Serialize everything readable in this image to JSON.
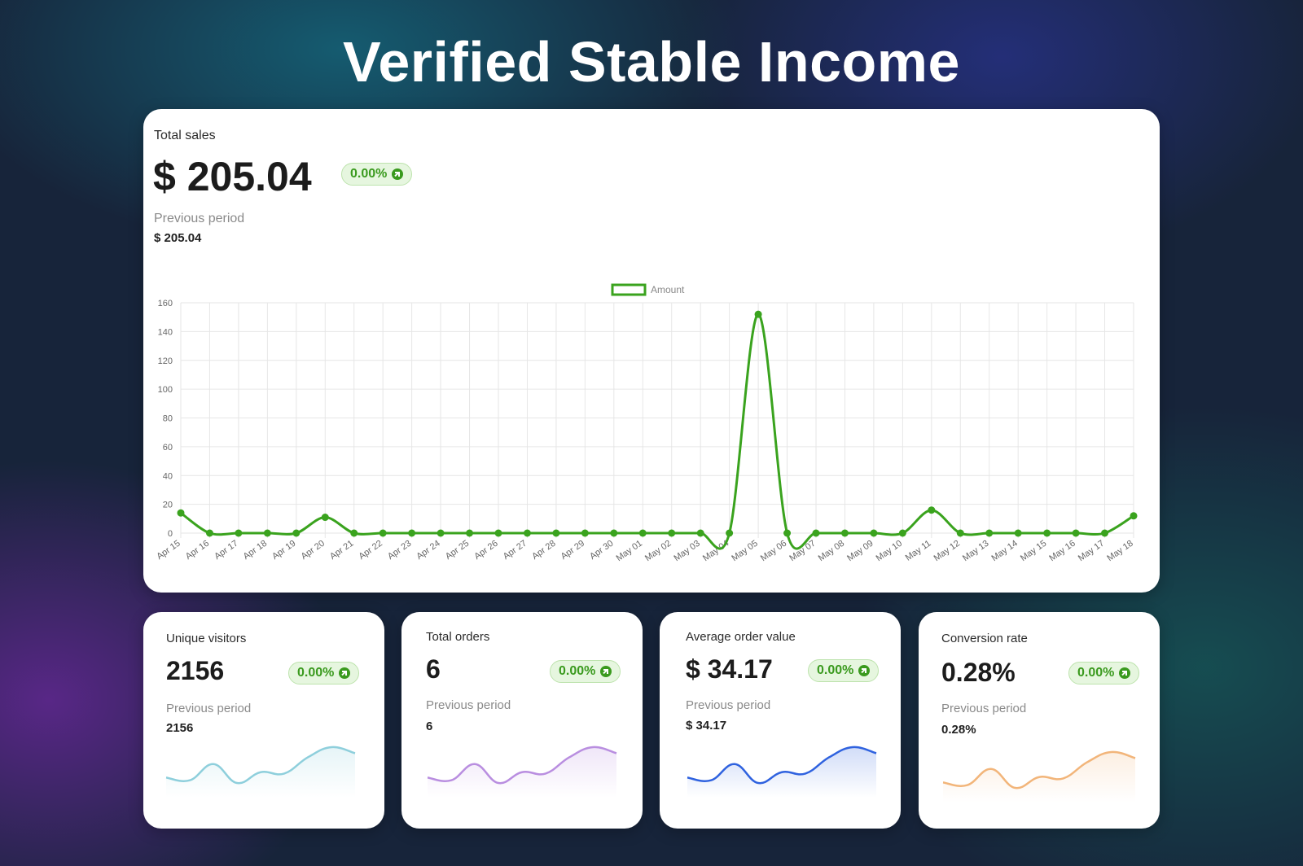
{
  "page_title": "Verified Stable Income",
  "colors": {
    "accent_green": "#3aa31e",
    "badge_bg": "#e6f6df",
    "spark_visitors": "#8ecfdc",
    "spark_orders": "#b98ee0",
    "spark_aov": "#2f62df",
    "spark_conversion": "#f2b57a"
  },
  "total_sales": {
    "label": "Total sales",
    "value": "$ 205.04",
    "change": "0.00%",
    "change_icon": "arrow-up-right-icon",
    "previous_label": "Previous period",
    "previous_value": "$ 205.04"
  },
  "chart_data": {
    "type": "line",
    "legend": [
      "Amount"
    ],
    "legend_position": "top-center",
    "grid": true,
    "ylim": [
      0,
      160
    ],
    "yticks": [
      0,
      20,
      40,
      60,
      80,
      100,
      120,
      140,
      160
    ],
    "categories": [
      "Apr 15",
      "Apr 16",
      "Apr 17",
      "Apr 18",
      "Apr 19",
      "Apr 20",
      "Apr 21",
      "Apr 22",
      "Apr 23",
      "Apr 24",
      "Apr 25",
      "Apr 26",
      "Apr 27",
      "Apr 28",
      "Apr 29",
      "Apr 30",
      "May 01",
      "May 02",
      "May 03",
      "May 04",
      "May 05",
      "May 06",
      "May 07",
      "May 08",
      "May 09",
      "May 10",
      "May 11",
      "May 12",
      "May 13",
      "May 14",
      "May 15",
      "May 16",
      "May 17",
      "May 18"
    ],
    "series": [
      {
        "name": "Amount",
        "values": [
          14,
          0,
          0,
          0,
          0,
          11,
          0,
          0,
          0,
          0,
          0,
          0,
          0,
          0,
          0,
          0,
          0,
          0,
          0,
          0,
          152,
          0,
          0,
          0,
          0,
          0,
          16,
          0,
          0,
          0,
          0,
          0,
          0,
          12
        ]
      }
    ]
  },
  "metrics": [
    {
      "key": "visitors",
      "label": "Unique visitors",
      "value": "2156",
      "change": "0.00%",
      "previous_label": "Previous period",
      "previous_value": "2156"
    },
    {
      "key": "orders",
      "label": "Total orders",
      "value": "6",
      "change": "0.00%",
      "previous_label": "Previous period",
      "previous_value": "6"
    },
    {
      "key": "aov",
      "label": "Average order value",
      "value": "$ 34.17",
      "change": "0.00%",
      "previous_label": "Previous period",
      "previous_value": "$ 34.17"
    },
    {
      "key": "conversion",
      "label": "Conversion rate",
      "value": "0.28%",
      "change": "0.00%",
      "previous_label": "Previous period",
      "previous_value": "0.28%"
    }
  ],
  "sparkline_values": [
    2,
    1.6,
    4,
    1.2,
    2.8,
    2.6,
    5,
    6.5,
    5.6
  ]
}
